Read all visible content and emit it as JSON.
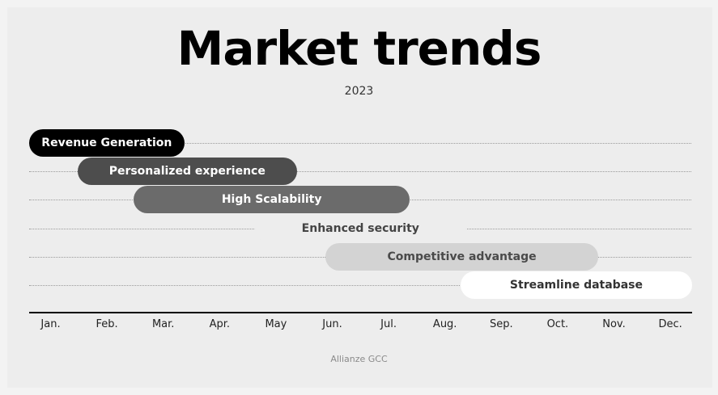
{
  "title": "Market trends",
  "subtitle": "2023",
  "footer": "Allianze GCC",
  "months": [
    "Jan.",
    "Feb.",
    "Mar.",
    "Apr.",
    "May",
    "Jun.",
    "Jul.",
    "Aug.",
    "Sep.",
    "Oct.",
    "Nov.",
    "Dec."
  ],
  "bars": [
    {
      "label": "Revenue Generation",
      "start": 0.65,
      "end": 3.0,
      "bg": "#000000",
      "fg": "#ffffff",
      "name": "bar-revenue-generation"
    },
    {
      "label": "Personalized experience",
      "start": 1.85,
      "end": 5.0,
      "bg": "#4d4d4d",
      "fg": "#ffffff",
      "name": "bar-personalized-experience"
    },
    {
      "label": "High Scalability",
      "start": 2.85,
      "end": 7.0,
      "bg": "#6b6b6b",
      "fg": "#ffffff",
      "name": "bar-high-scalability"
    },
    {
      "label": "Enhanced security",
      "start": 5.0,
      "end": 8.0,
      "bg": "#ededed",
      "fg": "#444444",
      "name": "bar-enhanced-security"
    },
    {
      "label": "Competitive advantage",
      "start": 6.25,
      "end": 10.35,
      "bg": "#d3d3d3",
      "fg": "#4a4a4a",
      "name": "bar-competitive-advantage"
    },
    {
      "label": "Streamline database",
      "start": 8.65,
      "end": 12.05,
      "bg": "#ffffff",
      "fg": "#333333",
      "name": "bar-streamline-database"
    }
  ]
}
